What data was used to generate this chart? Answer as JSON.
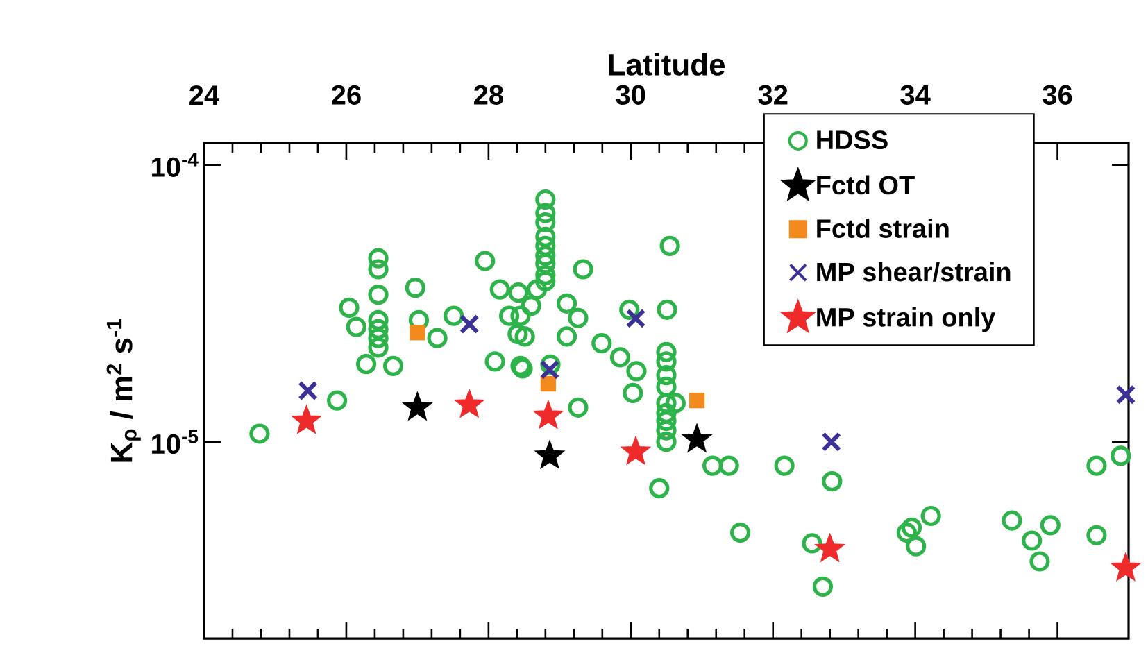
{
  "chart_data": {
    "type": "scatter",
    "xlabel": "Latitude",
    "ylabel": "K$_{ρ}$ / m$^{2}$ s$^{-1}$",
    "xlim": [
      24,
      37
    ],
    "xticks": [
      24,
      26,
      28,
      30,
      32,
      34,
      36
    ],
    "ylim": [
      1.95e-06,
      0.00012
    ],
    "yticks": [
      {
        "value": 0.0001,
        "label": "10$^{-4}$"
      },
      {
        "value": 1e-05,
        "label": "10$^{-5}$"
      }
    ],
    "log": "y",
    "legend": "top right",
    "series": [
      {
        "name": "HDSS",
        "marker": "circle",
        "color": "#2db34a",
        "x": [
          24.78,
          25.87,
          26.04,
          26.14,
          26.28,
          26.66,
          26.45,
          26.45,
          26.45,
          26.45,
          26.45,
          26.45,
          26.45,
          26.97,
          27.02,
          27.28,
          27.51,
          27.95,
          28.09,
          28.16,
          28.29,
          28.42,
          28.45,
          28.41,
          28.48,
          28.45,
          28.51,
          28.6,
          28.68,
          28.8,
          28.8,
          28.8,
          28.8,
          28.8,
          28.8,
          28.8,
          28.8,
          28.8,
          28.87,
          29.33,
          29.1,
          29.26,
          29.1,
          29.26,
          29.59,
          29.85,
          30.08,
          30.03,
          29.98,
          30.55,
          30.51,
          30.5,
          30.5,
          30.5,
          30.5,
          30.5,
          30.5,
          30.5,
          30.5,
          30.5,
          30.63,
          31.15,
          31.38,
          32.16,
          30.4,
          31.54,
          32.83,
          32.55,
          32.7,
          33.88,
          34.01,
          33.95,
          34.22,
          35.36,
          35.64,
          35.9,
          35.75,
          36.55,
          36.55,
          36.89
        ],
        "values": [
          1.07e-05,
          1.41e-05,
          3.05e-05,
          2.6e-05,
          1.91e-05,
          1.88e-05,
          4.6e-05,
          4.2e-05,
          3.4e-05,
          2.75e-05,
          2.55e-05,
          2.37e-05,
          2.19e-05,
          3.6e-05,
          2.75e-05,
          2.37e-05,
          2.85e-05,
          4.5e-05,
          1.95e-05,
          3.55e-05,
          2.85e-05,
          3.46e-05,
          1.88e-05,
          2.45e-05,
          1.84e-05,
          2.85e-05,
          2.4e-05,
          3.1e-05,
          3.55e-05,
          7.5e-05,
          6.7e-05,
          6.2e-05,
          5.5e-05,
          5.1e-05,
          4.7e-05,
          4.4e-05,
          4e-05,
          3.8e-05,
          1.9e-05,
          4.2e-05,
          3.16e-05,
          2.8e-05,
          2.4e-05,
          1.33e-05,
          2.27e-05,
          2.02e-05,
          1.8e-05,
          1.5e-05,
          3e-05,
          5.1e-05,
          3e-05,
          2.11e-05,
          1.95e-05,
          1.74e-05,
          1.58e-05,
          1.38e-05,
          1.27e-05,
          1.19e-05,
          1.1e-05,
          1e-05,
          1.38e-05,
          8.2e-06,
          8.2e-06,
          8.2e-06,
          6.8e-06,
          4.7e-06,
          7.2e-06,
          4.3e-06,
          3e-06,
          4.7e-06,
          4.2e-06,
          4.9e-06,
          5.4e-06,
          5.2e-06,
          4.4e-06,
          5e-06,
          3.7e-06,
          8.2e-06,
          4.6e-06,
          8.9e-06
        ]
      },
      {
        "name": "Fctd OT",
        "marker": "star",
        "color": "#000000",
        "x": [
          27.0,
          28.86,
          30.93
        ],
        "values": [
          1.33e-05,
          8.9e-06,
          1.02e-05
        ]
      },
      {
        "name": "Fctd strain",
        "marker": "square",
        "color": "#f28a1e",
        "x": [
          27.0,
          28.84,
          30.93
        ],
        "values": [
          2.48e-05,
          1.62e-05,
          1.41e-05
        ]
      },
      {
        "name": "MP shear/strain",
        "marker": "cross",
        "color": "#3b3197",
        "x": [
          25.46,
          27.73,
          28.86,
          30.07,
          32.82,
          36.96
        ],
        "values": [
          1.53e-05,
          2.66e-05,
          1.82e-05,
          2.79e-05,
          1e-05,
          1.48e-05
        ]
      },
      {
        "name": "MP strain only",
        "marker": "star",
        "color": "#ee2a2a",
        "x": [
          25.44,
          27.73,
          28.84,
          30.07,
          32.8,
          36.96
        ],
        "values": [
          1.19e-05,
          1.36e-05,
          1.24e-05,
          9.2e-06,
          4.1e-06,
          3.5e-06
        ]
      }
    ]
  }
}
